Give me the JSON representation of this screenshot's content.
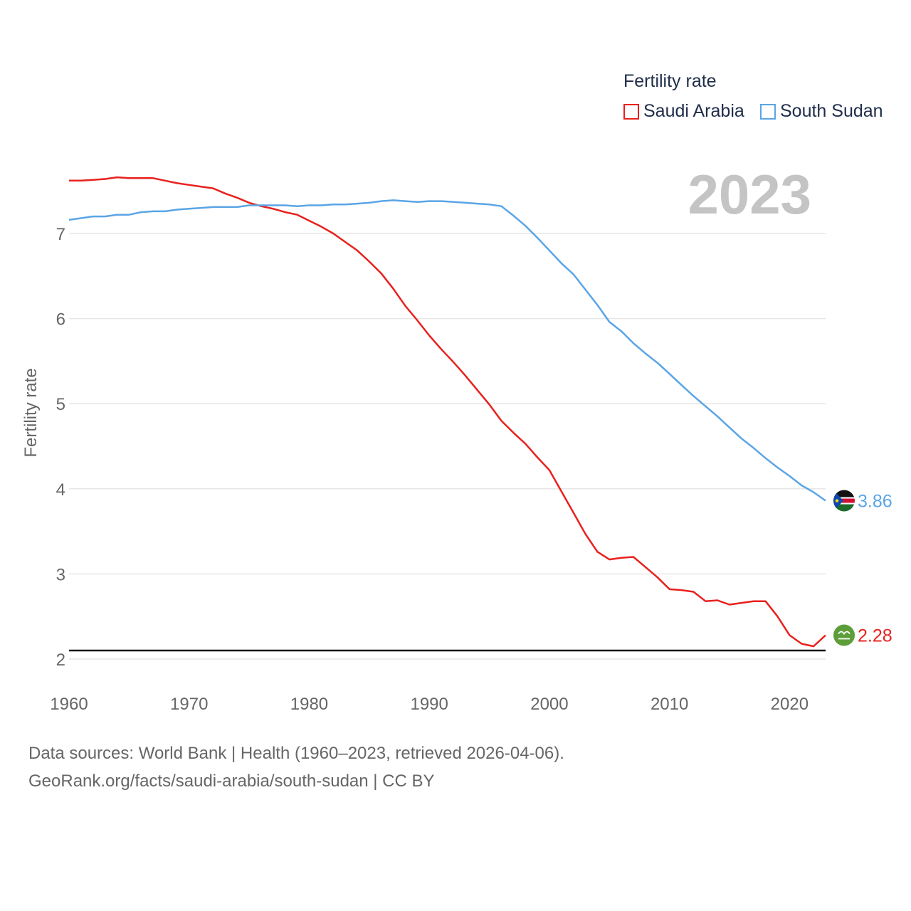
{
  "legend": {
    "title": "Fertility rate",
    "items": [
      {
        "label": "Saudi Arabia",
        "color": "#e8211d"
      },
      {
        "label": "South Sudan",
        "color": "#5aa5e6"
      }
    ]
  },
  "year_label": "2023",
  "footer": {
    "line1": "Data sources: World Bank | Health (1960–2023, retrieved 2026-04-06).",
    "line2": "GeoRank.org/facts/saudi-arabia/south-sudan | CC BY"
  },
  "chart_data": {
    "type": "line",
    "title": "Fertility rate",
    "xlabel": "",
    "ylabel": "Fertility rate",
    "xlim": [
      1960,
      2023
    ],
    "ylim": [
      2,
      7.7
    ],
    "x_ticks": [
      1960,
      1970,
      1980,
      1990,
      2000,
      2010,
      2020
    ],
    "y_ticks": [
      2,
      3,
      4,
      5,
      6,
      7
    ],
    "reference_line": 2.1,
    "x": [
      1960,
      1961,
      1962,
      1963,
      1964,
      1965,
      1966,
      1967,
      1968,
      1969,
      1970,
      1971,
      1972,
      1973,
      1974,
      1975,
      1976,
      1977,
      1978,
      1979,
      1980,
      1981,
      1982,
      1983,
      1984,
      1985,
      1986,
      1987,
      1988,
      1989,
      1990,
      1991,
      1992,
      1993,
      1994,
      1995,
      1996,
      1997,
      1998,
      1999,
      2000,
      2001,
      2002,
      2003,
      2004,
      2005,
      2006,
      2007,
      2008,
      2009,
      2010,
      2011,
      2012,
      2013,
      2014,
      2015,
      2016,
      2017,
      2018,
      2019,
      2020,
      2021,
      2022,
      2023
    ],
    "series": [
      {
        "name": "Saudi Arabia",
        "color": "#e8211d",
        "end_label": "2.28",
        "values": [
          7.62,
          7.62,
          7.63,
          7.64,
          7.66,
          7.65,
          7.65,
          7.65,
          7.62,
          7.59,
          7.57,
          7.55,
          7.53,
          7.47,
          7.42,
          7.36,
          7.32,
          7.29,
          7.25,
          7.22,
          7.15,
          7.08,
          7.0,
          6.9,
          6.8,
          6.67,
          6.53,
          6.35,
          6.15,
          5.98,
          5.8,
          5.64,
          5.49,
          5.33,
          5.16,
          4.99,
          4.8,
          4.66,
          4.53,
          4.37,
          4.22,
          3.97,
          3.72,
          3.47,
          3.26,
          3.17,
          3.19,
          3.2,
          3.08,
          2.96,
          2.82,
          2.81,
          2.79,
          2.68,
          2.69,
          2.64,
          2.66,
          2.68,
          2.68,
          2.5,
          2.28,
          2.18,
          2.15,
          2.28
        ]
      },
      {
        "name": "South Sudan",
        "color": "#5aa5e6",
        "end_label": "3.86",
        "values": [
          7.16,
          7.18,
          7.2,
          7.2,
          7.22,
          7.22,
          7.25,
          7.26,
          7.26,
          7.28,
          7.29,
          7.3,
          7.31,
          7.31,
          7.31,
          7.33,
          7.33,
          7.33,
          7.33,
          7.32,
          7.33,
          7.33,
          7.34,
          7.34,
          7.35,
          7.36,
          7.38,
          7.39,
          7.38,
          7.37,
          7.38,
          7.38,
          7.37,
          7.36,
          7.35,
          7.34,
          7.32,
          7.21,
          7.09,
          6.95,
          6.8,
          6.65,
          6.52,
          6.34,
          6.16,
          5.96,
          5.85,
          5.71,
          5.59,
          5.48,
          5.35,
          5.22,
          5.09,
          4.97,
          4.85,
          4.72,
          4.59,
          4.48,
          4.36,
          4.25,
          4.15,
          4.04,
          3.96,
          3.86
        ]
      }
    ]
  }
}
